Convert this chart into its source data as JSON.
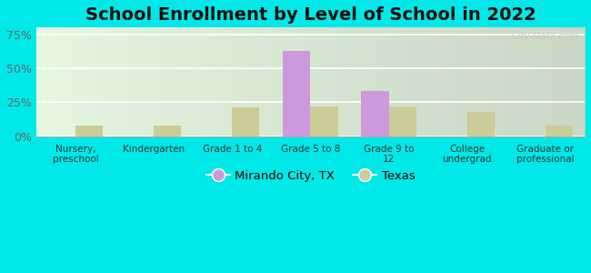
{
  "title": "School Enrollment by Level of School in 2022",
  "categories": [
    "Nursery,\npreschool",
    "Kindergarten",
    "Grade 1 to 4",
    "Grade 5 to 8",
    "Grade 9 to\n12",
    "College\nundergrad",
    "Graduate or\nprofessional"
  ],
  "city_values": [
    0,
    0,
    0,
    63,
    33,
    0,
    0
  ],
  "state_values": [
    8,
    8,
    21,
    22,
    22,
    18,
    8
  ],
  "city_color": "#cc99dd",
  "state_color": "#cccc99",
  "background_outer": "#00e8e8",
  "background_inner": "#eef7ee",
  "title_fontsize": 14,
  "bar_width": 0.35,
  "ylim": [
    0,
    80
  ],
  "yticks": [
    0,
    25,
    50,
    75
  ],
  "ytick_labels": [
    "0%",
    "25%",
    "50%",
    "75%"
  ],
  "legend_city": "Mirando City, TX",
  "legend_state": "Texas",
  "watermark": "City-Data.com"
}
